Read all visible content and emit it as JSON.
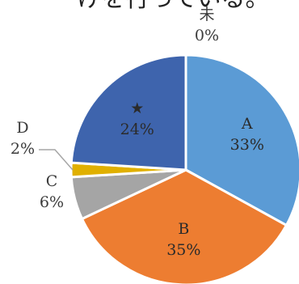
{
  "caption_fragment": "けを行っている。",
  "chart_data": {
    "type": "pie",
    "title": "",
    "slices": [
      {
        "label": "A",
        "value": 33,
        "value_label": "33%",
        "color": "#5b9bd5"
      },
      {
        "label": "B",
        "value": 35,
        "value_label": "35%",
        "color": "#ed7d31"
      },
      {
        "label": "C",
        "value": 6,
        "value_label": "6%",
        "color": "#a5a5a5"
      },
      {
        "label": "D",
        "value": 2,
        "value_label": "2%",
        "color": "#e0b000"
      },
      {
        "label": "★",
        "value": 24,
        "value_label": "24%",
        "color": "#3e64ad"
      },
      {
        "label": "未",
        "value": 0,
        "value_label": "0%",
        "color": "#70ad47"
      }
    ],
    "start_angle_deg": 0,
    "direction": "clockwise",
    "legend": "none",
    "data_labels": "category-and-percent"
  }
}
